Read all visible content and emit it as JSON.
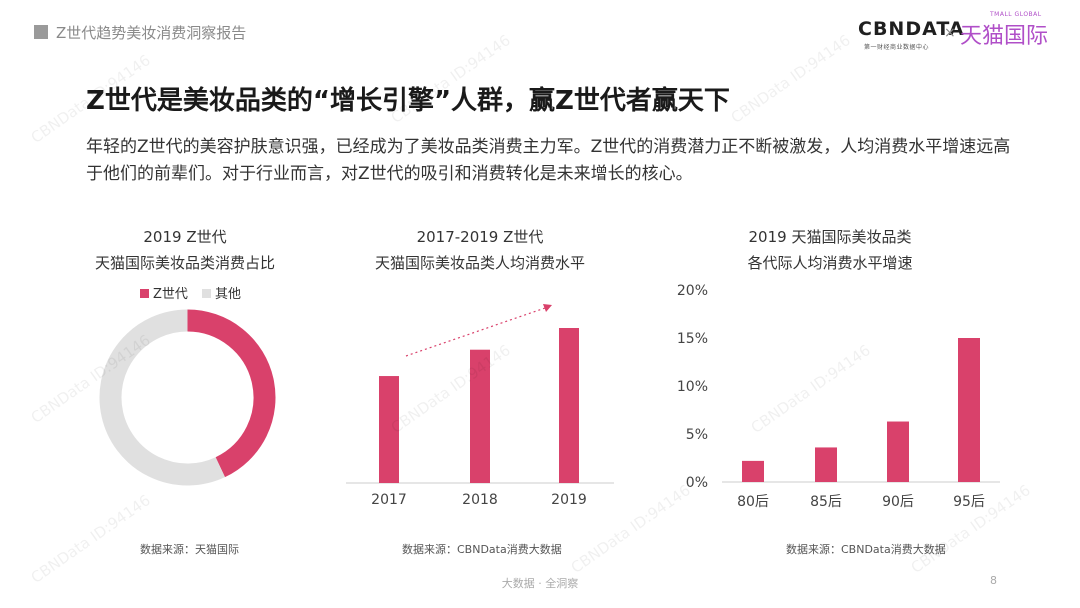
{
  "header": {
    "report_title": "Z世代趋势美妆消费洞察报告",
    "logo_cbn": "CBNDATA",
    "logo_cbn_sub": "第一财经商业数据中心",
    "logo_separator": "×",
    "logo_tmall": "天猫国际",
    "logo_tmall_sub": "TMALL GLOBAL"
  },
  "main": {
    "title": "Z世代是美妆品类的“增长引擎”人群，赢Z世代者赢天下",
    "intro": "年轻的Z世代的美容护肤意识强，已经成为了美妆品类消费主力军。Z世代的消费潜力正不断被激发，人均消费水平增速远高于他们的前辈们。对于行业而言，对Z世代的吸引和消费转化是未来增长的核心。"
  },
  "watermark": "CBNData ID:94146",
  "footer": {
    "text": "大数据 · 全洞察",
    "page": "8"
  },
  "colors": {
    "accent": "#d9416b",
    "other": "#e0e0e0",
    "axis": "#cccccc"
  },
  "chart_data": [
    {
      "type": "pie",
      "title_lines": [
        "2019 Z世代",
        "天猫国际美妆品类消费占比"
      ],
      "legend": [
        "Z世代",
        "其他"
      ],
      "values": [
        0.43,
        0.57
      ],
      "source": "数据来源：天猫国际"
    },
    {
      "type": "bar",
      "title_lines": [
        "2017-2019 Z世代",
        "天猫国际美妆品类人均消费水平"
      ],
      "categories": [
        "2017",
        "2018",
        "2019"
      ],
      "values": [
        0.69,
        0.86,
        1.0
      ],
      "trend_arrow": true,
      "source": "数据来源：CBNData消费大数据"
    },
    {
      "type": "bar",
      "title_lines": [
        "2019 天猫国际美妆品类",
        "各代际人均消费水平增速"
      ],
      "categories": [
        "80后",
        "85后",
        "90后",
        "95后"
      ],
      "values": [
        2.2,
        3.6,
        6.3,
        15.0
      ],
      "yticks": [
        "0%",
        "5%",
        "10%",
        "15%",
        "20%"
      ],
      "ylim": [
        0,
        20
      ],
      "source": "数据来源：CBNData消费大数据"
    }
  ]
}
